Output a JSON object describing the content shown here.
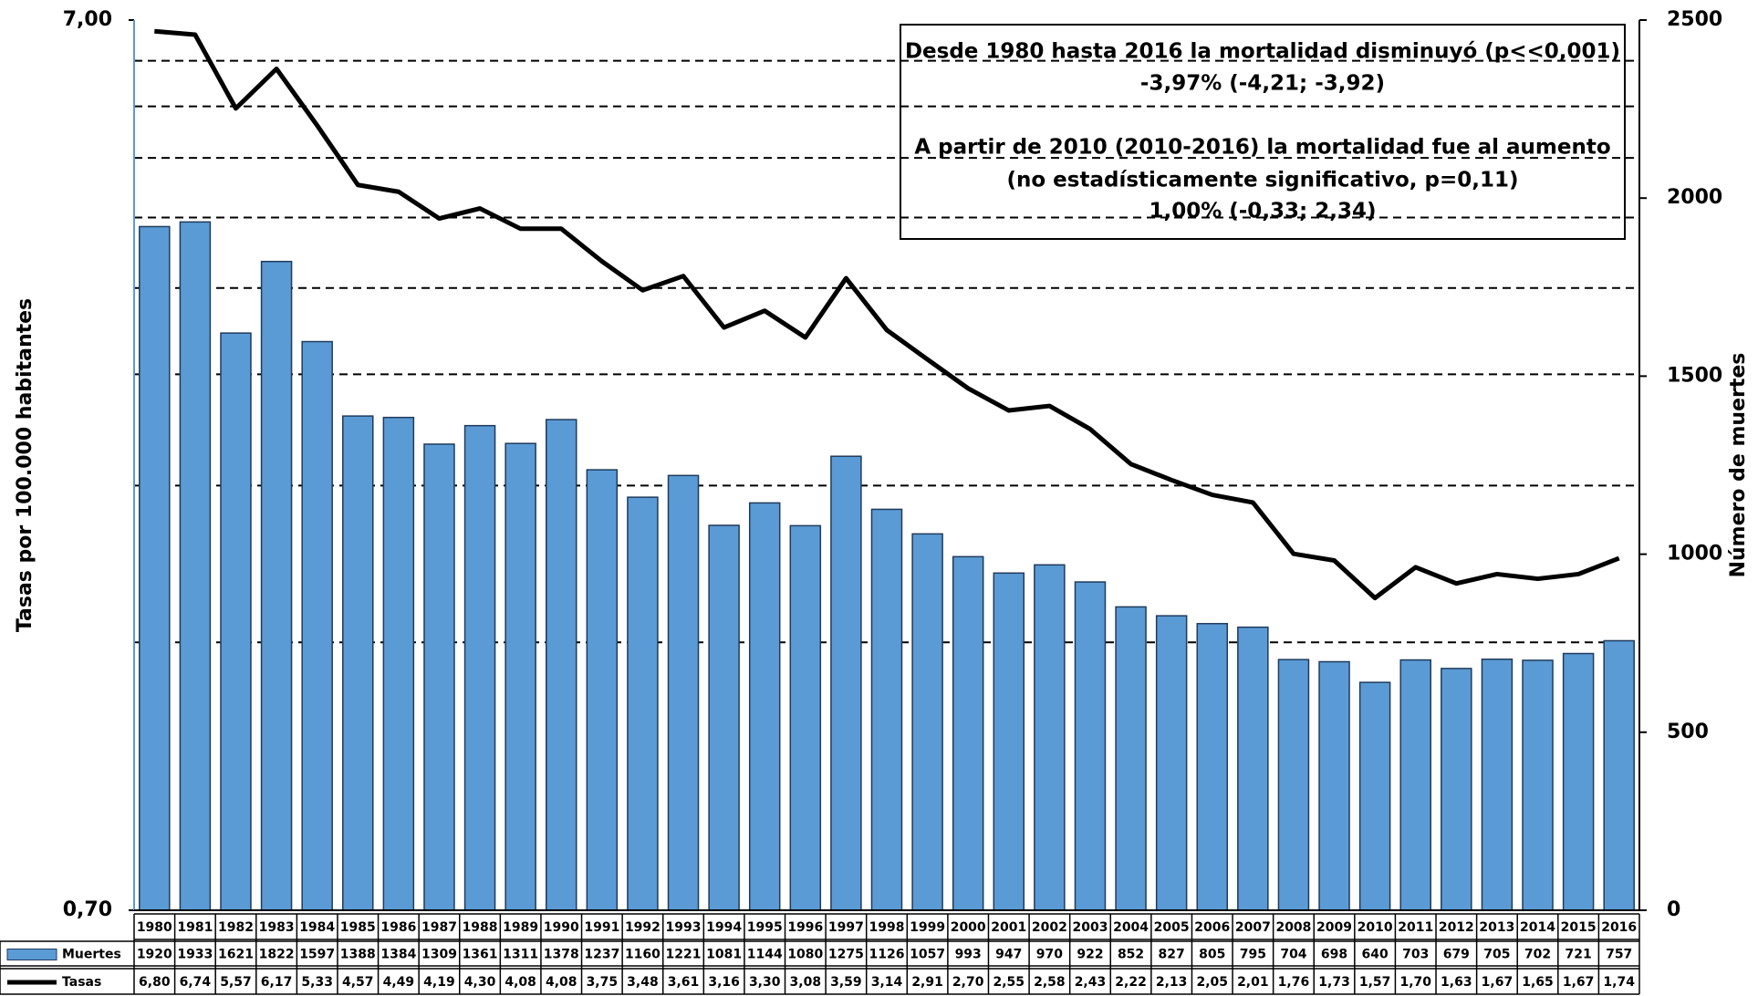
{
  "chart_data": {
    "type": "bar-line",
    "categories": [
      "1980",
      "1981",
      "1982",
      "1983",
      "1984",
      "1985",
      "1986",
      "1987",
      "1988",
      "1989",
      "1990",
      "1991",
      "1992",
      "1993",
      "1994",
      "1995",
      "1996",
      "1997",
      "1998",
      "1999",
      "2000",
      "2001",
      "2002",
      "2003",
      "2004",
      "2005",
      "2006",
      "2007",
      "2008",
      "2009",
      "2010",
      "2011",
      "2012",
      "2013",
      "2014",
      "2015",
      "2016"
    ],
    "series": [
      {
        "name": "Muertes",
        "type": "bar",
        "axis": "y2",
        "color": "#5b9bd5",
        "values": [
          1920,
          1933,
          1621,
          1822,
          1597,
          1388,
          1384,
          1309,
          1361,
          1311,
          1378,
          1237,
          1160,
          1221,
          1081,
          1144,
          1080,
          1275,
          1126,
          1057,
          993,
          947,
          970,
          922,
          852,
          827,
          805,
          795,
          704,
          698,
          640,
          703,
          679,
          705,
          702,
          721,
          757
        ]
      },
      {
        "name": "Tasas",
        "type": "line",
        "color": "#000000",
        "values": [
          6.8,
          6.74,
          5.57,
          6.17,
          5.33,
          4.57,
          4.49,
          4.19,
          4.3,
          4.08,
          4.08,
          3.75,
          3.48,
          3.61,
          3.16,
          3.3,
          3.08,
          3.59,
          3.14,
          2.91,
          2.7,
          2.55,
          2.58,
          2.43,
          2.22,
          2.13,
          2.05,
          2.01,
          1.76,
          1.73,
          1.57,
          1.7,
          1.63,
          1.67,
          1.65,
          1.67,
          1.74
        ],
        "value_labels": [
          "6,80",
          "6,74",
          "5,57",
          "6,17",
          "5,33",
          "4,57",
          "4,49",
          "4,19",
          "4,30",
          "4,08",
          "4,08",
          "3,75",
          "3,48",
          "3,61",
          "3,16",
          "3,30",
          "3,08",
          "3,59",
          "3,14",
          "2,91",
          "2,70",
          "2,55",
          "2,58",
          "2,43",
          "2,22",
          "2,13",
          "2,05",
          "2,01",
          "1,76",
          "1,73",
          "1,57",
          "1,70",
          "1,63",
          "1,67",
          "1,65",
          "1,67",
          "1,74"
        ]
      }
    ],
    "ylabel": "Tasas por 100.000 habitantes",
    "y2label": "Número de muertes",
    "ylim": [
      0.7,
      7.0
    ],
    "yscale": "log",
    "yticks": [
      {
        "value": 0.7,
        "label": "0,70"
      },
      {
        "value": 7.0,
        "label": "7,00"
      }
    ],
    "ygrid": [
      1.4,
      2.1,
      2.8,
      3.5,
      4.2,
      4.9,
      5.6,
      6.3
    ],
    "y2lim": [
      0,
      2500
    ],
    "y2ticks": [
      0,
      500,
      1000,
      1500,
      2000,
      2500
    ],
    "annotations": [
      "Desde 1980 hasta 2016 la mortalidad disminuyó (p<<0,001)",
      "-3,97%  (-4,21; -3,92)",
      "A partir de 2010 (2010-2016) la mortalidad fue al aumento",
      "(no estadísticamente significativo, p=0,11)",
      "1,00% (-0,33; 2,34)"
    ]
  }
}
